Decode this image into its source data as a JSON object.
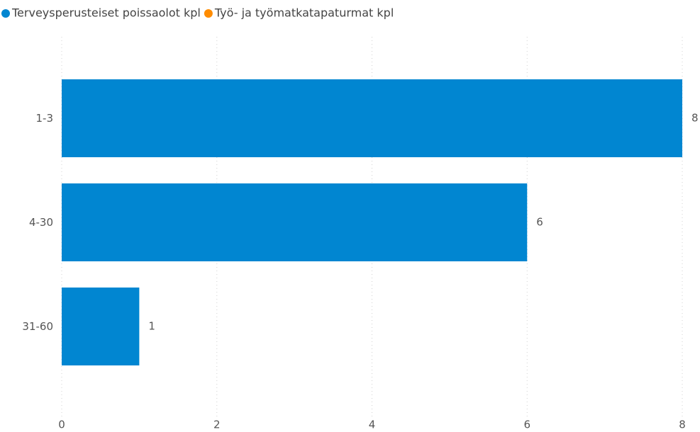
{
  "chart_data": {
    "type": "hbar",
    "categories": [
      "1-3",
      "4-30",
      "31-60"
    ],
    "series": [
      {
        "name": "Terveysperusteiset poissaolot kpl",
        "color": "#0186d1",
        "values": [
          8,
          6,
          1
        ]
      },
      {
        "name": "Työ- ja työmatkatapaturmat kpl",
        "color": "#ff8c00",
        "values": [
          null,
          null,
          null
        ]
      }
    ],
    "xlim": [
      0,
      8
    ],
    "xticks": [
      0,
      2,
      4,
      6,
      8
    ],
    "grid": true
  }
}
